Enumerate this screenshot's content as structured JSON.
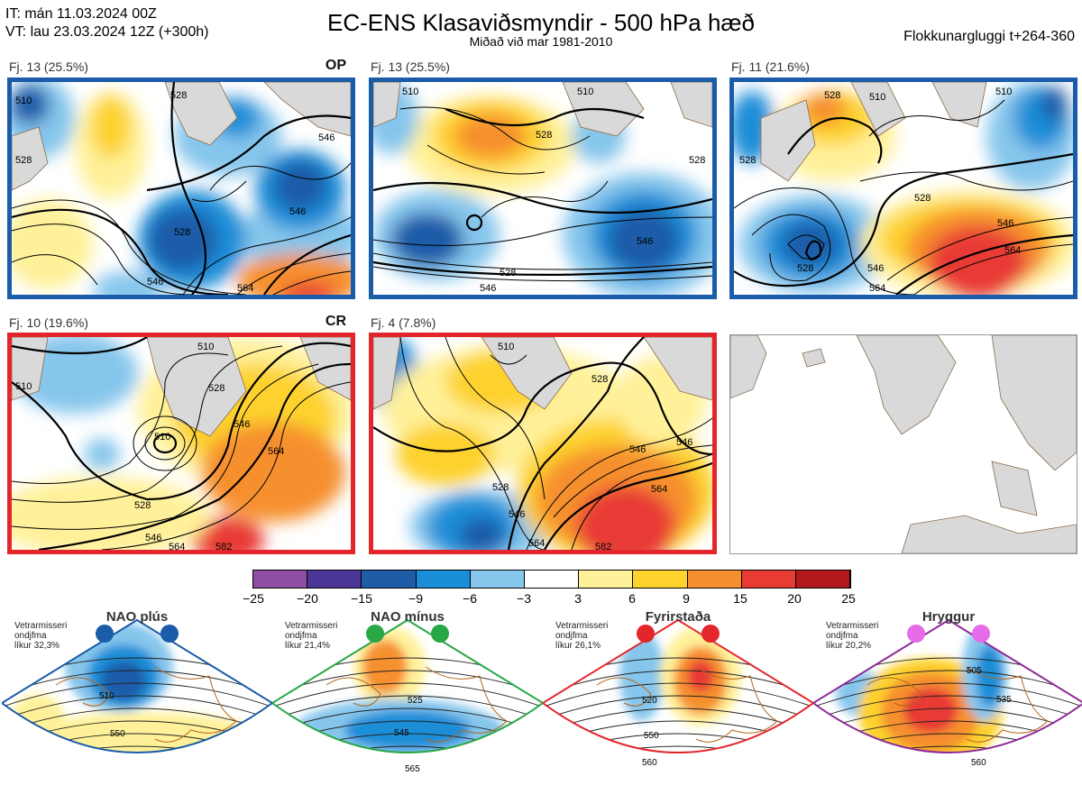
{
  "header": {
    "it_line": "IT: mán 11.03.2024 00Z",
    "vt_line": "VT: lau 23.03.2024 12Z  (+300h)",
    "title": "EC-ENS Klasaviðsmyndir - 500 hPa hæð",
    "subtitle": "Miðað við mar 1981-2010",
    "window": "Flokkunargluggi t+264-360"
  },
  "panels": [
    {
      "label": "Fj. 13 (25.5%)",
      "tag": "OP",
      "contours": [
        "510",
        "528",
        "528",
        "546",
        "528",
        "546",
        "546",
        "564"
      ]
    },
    {
      "label": "Fj. 13 (25.5%)",
      "tag": "",
      "contours": [
        "510",
        "510",
        "528",
        "528",
        "546",
        "528",
        "546"
      ]
    },
    {
      "label": "Fj. 11 (21.6%)",
      "tag": "",
      "contours": [
        "528",
        "510",
        "510",
        "528",
        "528",
        "546",
        "564",
        "546",
        "528",
        "564"
      ]
    },
    {
      "label": "Fj. 10 (19.6%)",
      "tag": "CR",
      "contours": [
        "510",
        "510",
        "528",
        "546",
        "510",
        "564",
        "528",
        "546",
        "564",
        "582"
      ]
    },
    {
      "label": "Fj. 4 (7.8%)",
      "tag": "",
      "contours": [
        "510",
        "528",
        "528",
        "546",
        "546",
        "564",
        "546",
        "564",
        "582"
      ]
    }
  ],
  "colorbar": {
    "ticks": [
      "−25",
      "−20",
      "−15",
      "−9",
      "−6",
      "−3",
      "3",
      "6",
      "9",
      "15",
      "20",
      "25"
    ],
    "colors": [
      "#8e4fa3",
      "#4b3597",
      "#1f5ca8",
      "#1a8ed8",
      "#86c6ec",
      "#ffffff",
      "#fff19a",
      "#fdd22d",
      "#f6902f",
      "#e83b34",
      "#b3181d"
    ]
  },
  "regimes": [
    {
      "title": "NAO plús",
      "note": [
        "Vetrarmisseri",
        "ondjfma",
        "líkur 32,3%"
      ],
      "contours": [
        "510",
        "550"
      ],
      "border": "#1a5ca8",
      "dot": "#1a5ca8"
    },
    {
      "title": "NAO mínus",
      "note": [
        "Vetrarmisseri",
        "ondjfma",
        "líkur 21,4%"
      ],
      "contours": [
        "525",
        "545",
        "565"
      ],
      "border": "#28a745",
      "dot": "#28a745"
    },
    {
      "title": "Fyrirstaða",
      "note": [
        "Vetrarmisseri",
        "ondjfma",
        "líkur 26,1%"
      ],
      "contours": [
        "520",
        "550",
        "560"
      ],
      "border": "#e3262c",
      "dot": "#e3262c"
    },
    {
      "title": "Hryggur",
      "note": [
        "Vetrarmisseri",
        "ondjfma",
        "líkur 20,2%"
      ],
      "contours": [
        "505",
        "535",
        "560"
      ],
      "border": "#8d2a98",
      "dot": "#e66be8"
    }
  ]
}
